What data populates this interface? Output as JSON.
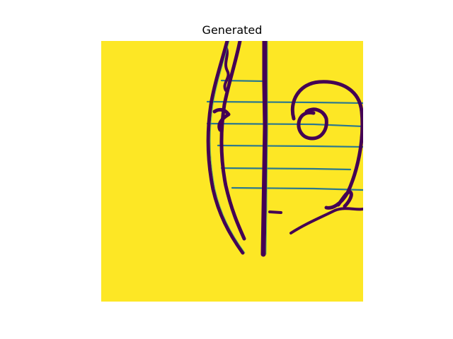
{
  "figure": {
    "title": "Generated"
  },
  "colors": {
    "background": "#fde725",
    "ink_dark": "#440154",
    "ink_mid": "#31688e",
    "ink_light": "#35b779"
  }
}
